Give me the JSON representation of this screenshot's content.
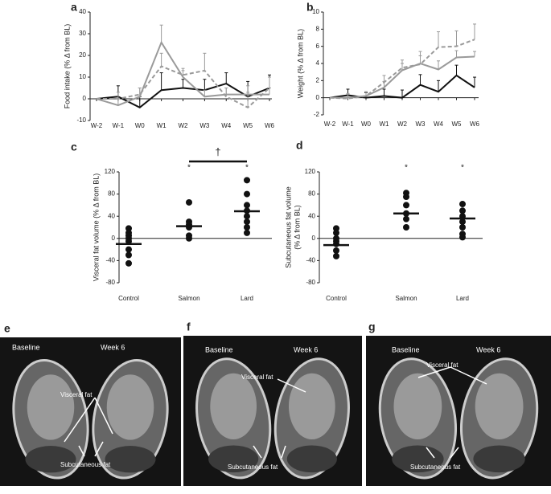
{
  "chart_data": [
    {
      "type": "line",
      "label": "a",
      "ylabel": "Food intake (% Δ from BL)",
      "categories": [
        "W-2",
        "W-1",
        "W0",
        "W1",
        "W2",
        "W3",
        "W4",
        "W5",
        "W6"
      ],
      "ylim": [
        -10,
        40
      ],
      "yticks": [
        -10,
        0,
        10,
        20,
        30,
        40
      ],
      "series": [
        {
          "color": "#111111",
          "dashed": false,
          "values": [
            0,
            1,
            -4,
            4,
            5,
            4,
            7,
            1,
            5
          ],
          "errors": [
            0,
            5,
            5,
            8,
            4,
            5,
            5,
            7,
            6
          ]
        },
        {
          "color": "#9a9a9a",
          "dashed": false,
          "values": [
            0,
            -3,
            1,
            26,
            10,
            1,
            2,
            2,
            2
          ],
          "errors": [
            0,
            3,
            4,
            8,
            3,
            3,
            3,
            4,
            3
          ]
        },
        {
          "color": "#9a9a9a",
          "dashed": true,
          "values": [
            0,
            0,
            2,
            15,
            11,
            13,
            1,
            -4,
            5
          ],
          "errors": [
            0,
            3,
            3,
            6,
            3,
            8,
            4,
            7,
            5
          ]
        }
      ]
    },
    {
      "type": "line",
      "label": "b",
      "ylabel": "Weight (% Δ from BL)",
      "categories": [
        "W-2",
        "W-1",
        "W0",
        "W1",
        "W2",
        "W3",
        "W4",
        "W5",
        "W6"
      ],
      "ylim": [
        -2,
        10
      ],
      "yticks": [
        -2,
        0,
        2,
        4,
        6,
        8,
        10
      ],
      "series": [
        {
          "color": "#111111",
          "dashed": false,
          "values": [
            0,
            0.3,
            0,
            0.2,
            0,
            1.5,
            0.7,
            2.6,
            1.2
          ],
          "errors": [
            0,
            0.7,
            0.6,
            0.8,
            0.9,
            1.2,
            1.3,
            1.2,
            1.2
          ]
        },
        {
          "color": "#9a9a9a",
          "dashed": false,
          "values": [
            0,
            0,
            0.2,
            1.2,
            3.2,
            4,
            3.3,
            4.7,
            4.8
          ],
          "errors": [
            0,
            0.5,
            0.5,
            0.7,
            0.8,
            0.9,
            1,
            0.8,
            0.6
          ]
        },
        {
          "color": "#9a9a9a",
          "dashed": true,
          "values": [
            0,
            -0.1,
            0.2,
            1.8,
            3.5,
            3.9,
            5.9,
            6,
            6.8
          ],
          "errors": [
            0,
            0.5,
            0.5,
            0.8,
            0.9,
            1.5,
            1.8,
            1.8,
            1.8
          ]
        }
      ]
    },
    {
      "type": "dot",
      "label": "c",
      "ylabel": "Visceral fat volume (% Δ from BL)",
      "categories": [
        "Control",
        "Salmon",
        "Lard"
      ],
      "ylim": [
        -80,
        120
      ],
      "yticks": [
        -80,
        -40,
        0,
        40,
        80,
        120
      ],
      "points": [
        [
          18,
          10,
          5,
          0,
          -5,
          -20,
          -30,
          -45
        ],
        [
          65,
          30,
          25,
          20,
          5,
          0
        ],
        [
          105,
          80,
          60,
          50,
          40,
          30,
          20,
          10
        ]
      ],
      "means": [
        -10,
        22,
        49
      ],
      "annotations": [
        {
          "text": "*",
          "category": "Salmon"
        },
        {
          "text": "*",
          "category": "Lard"
        },
        {
          "text": "†",
          "from": "Salmon",
          "to": "Lard"
        }
      ]
    },
    {
      "type": "dot",
      "label": "d",
      "ylabel": [
        "Subcutaneous fat volume",
        "(% Δ from BL)"
      ],
      "categories": [
        "Control",
        "Salmon",
        "Lard"
      ],
      "ylim": [
        -80,
        120
      ],
      "yticks": [
        -80,
        -40,
        0,
        40,
        80,
        120
      ],
      "points": [
        [
          18,
          10,
          0,
          -5,
          -10,
          -22,
          -32
        ],
        [
          82,
          75,
          60,
          45,
          35,
          20
        ],
        [
          62,
          50,
          40,
          30,
          20,
          8,
          2
        ]
      ],
      "means": [
        -12,
        45,
        36
      ],
      "annotations": [
        {
          "text": "*",
          "category": "Salmon"
        },
        {
          "text": "*",
          "category": "Lard"
        }
      ]
    }
  ],
  "images": [
    {
      "label": "e",
      "baseline": "Baseline",
      "week": "Week 6",
      "visceral": "Visceral fat",
      "subcutaneous": "Subcutaneous fat"
    },
    {
      "label": "f",
      "baseline": "Baseline",
      "week": "Week 6",
      "visceral": "Visceral fat",
      "subcutaneous": "Subcutaneous fat"
    },
    {
      "label": "g",
      "baseline": "Baseline",
      "week": "Week 6",
      "visceral": "Visceral fat",
      "subcutaneous": "Subcutaneous fat"
    }
  ]
}
